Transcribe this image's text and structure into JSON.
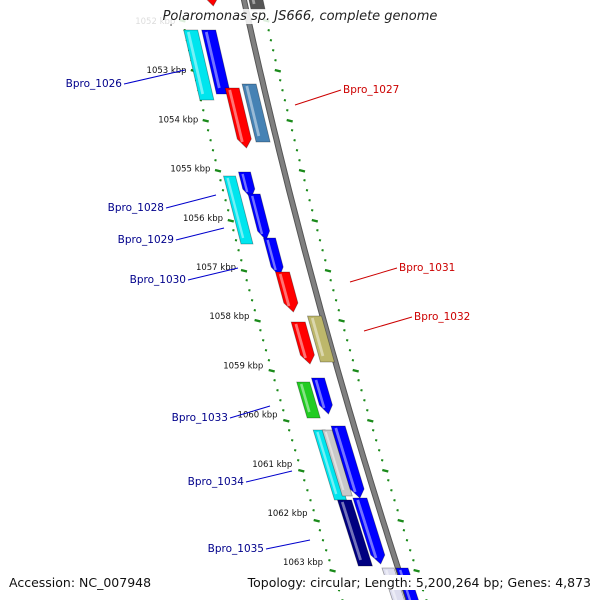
{
  "title": "Polaromonas sp. JS666, complete genome",
  "footer": {
    "accession": "Accession: NC_007948",
    "summary": "Topology: circular; Length: 5,200,264 bp; Genes: 4,873"
  },
  "ruler_labels": [
    "1052 kbp",
    "1053 kbp",
    "1054 kbp",
    "1055 kbp",
    "1056 kbp",
    "1057 kbp",
    "1058 kbp",
    "1059 kbp",
    "1060 kbp",
    "1061 kbp",
    "1062 kbp",
    "1063 kbp"
  ],
  "genes_left": [
    {
      "name": "Bpro_1026",
      "color": "#00008b"
    },
    {
      "name": "Bpro_1028",
      "color": "#00008b"
    },
    {
      "name": "Bpro_1029",
      "color": "#00008b"
    },
    {
      "name": "Bpro_1030",
      "color": "#00008b"
    },
    {
      "name": "Bpro_1033",
      "color": "#00008b"
    },
    {
      "name": "Bpro_1034",
      "color": "#00008b"
    },
    {
      "name": "Bpro_1035",
      "color": "#00008b"
    }
  ],
  "genes_right": [
    {
      "name": "Bpro_1027",
      "color": "#cc0000"
    },
    {
      "name": "Bpro_1031",
      "color": "#cc0000"
    },
    {
      "name": "Bpro_1032",
      "color": "#cc0000"
    }
  ],
  "colors": {
    "backbone": "#808080",
    "ticks": "#1a8a1a",
    "reverse_blue": "#0000ff",
    "cyan": "#00e5ee",
    "red": "#ff0000",
    "steel": "#4682b4",
    "khaki": "#bdb76b",
    "green": "#22cc22",
    "navy": "#000080",
    "grey": "#c8c8c8"
  }
}
